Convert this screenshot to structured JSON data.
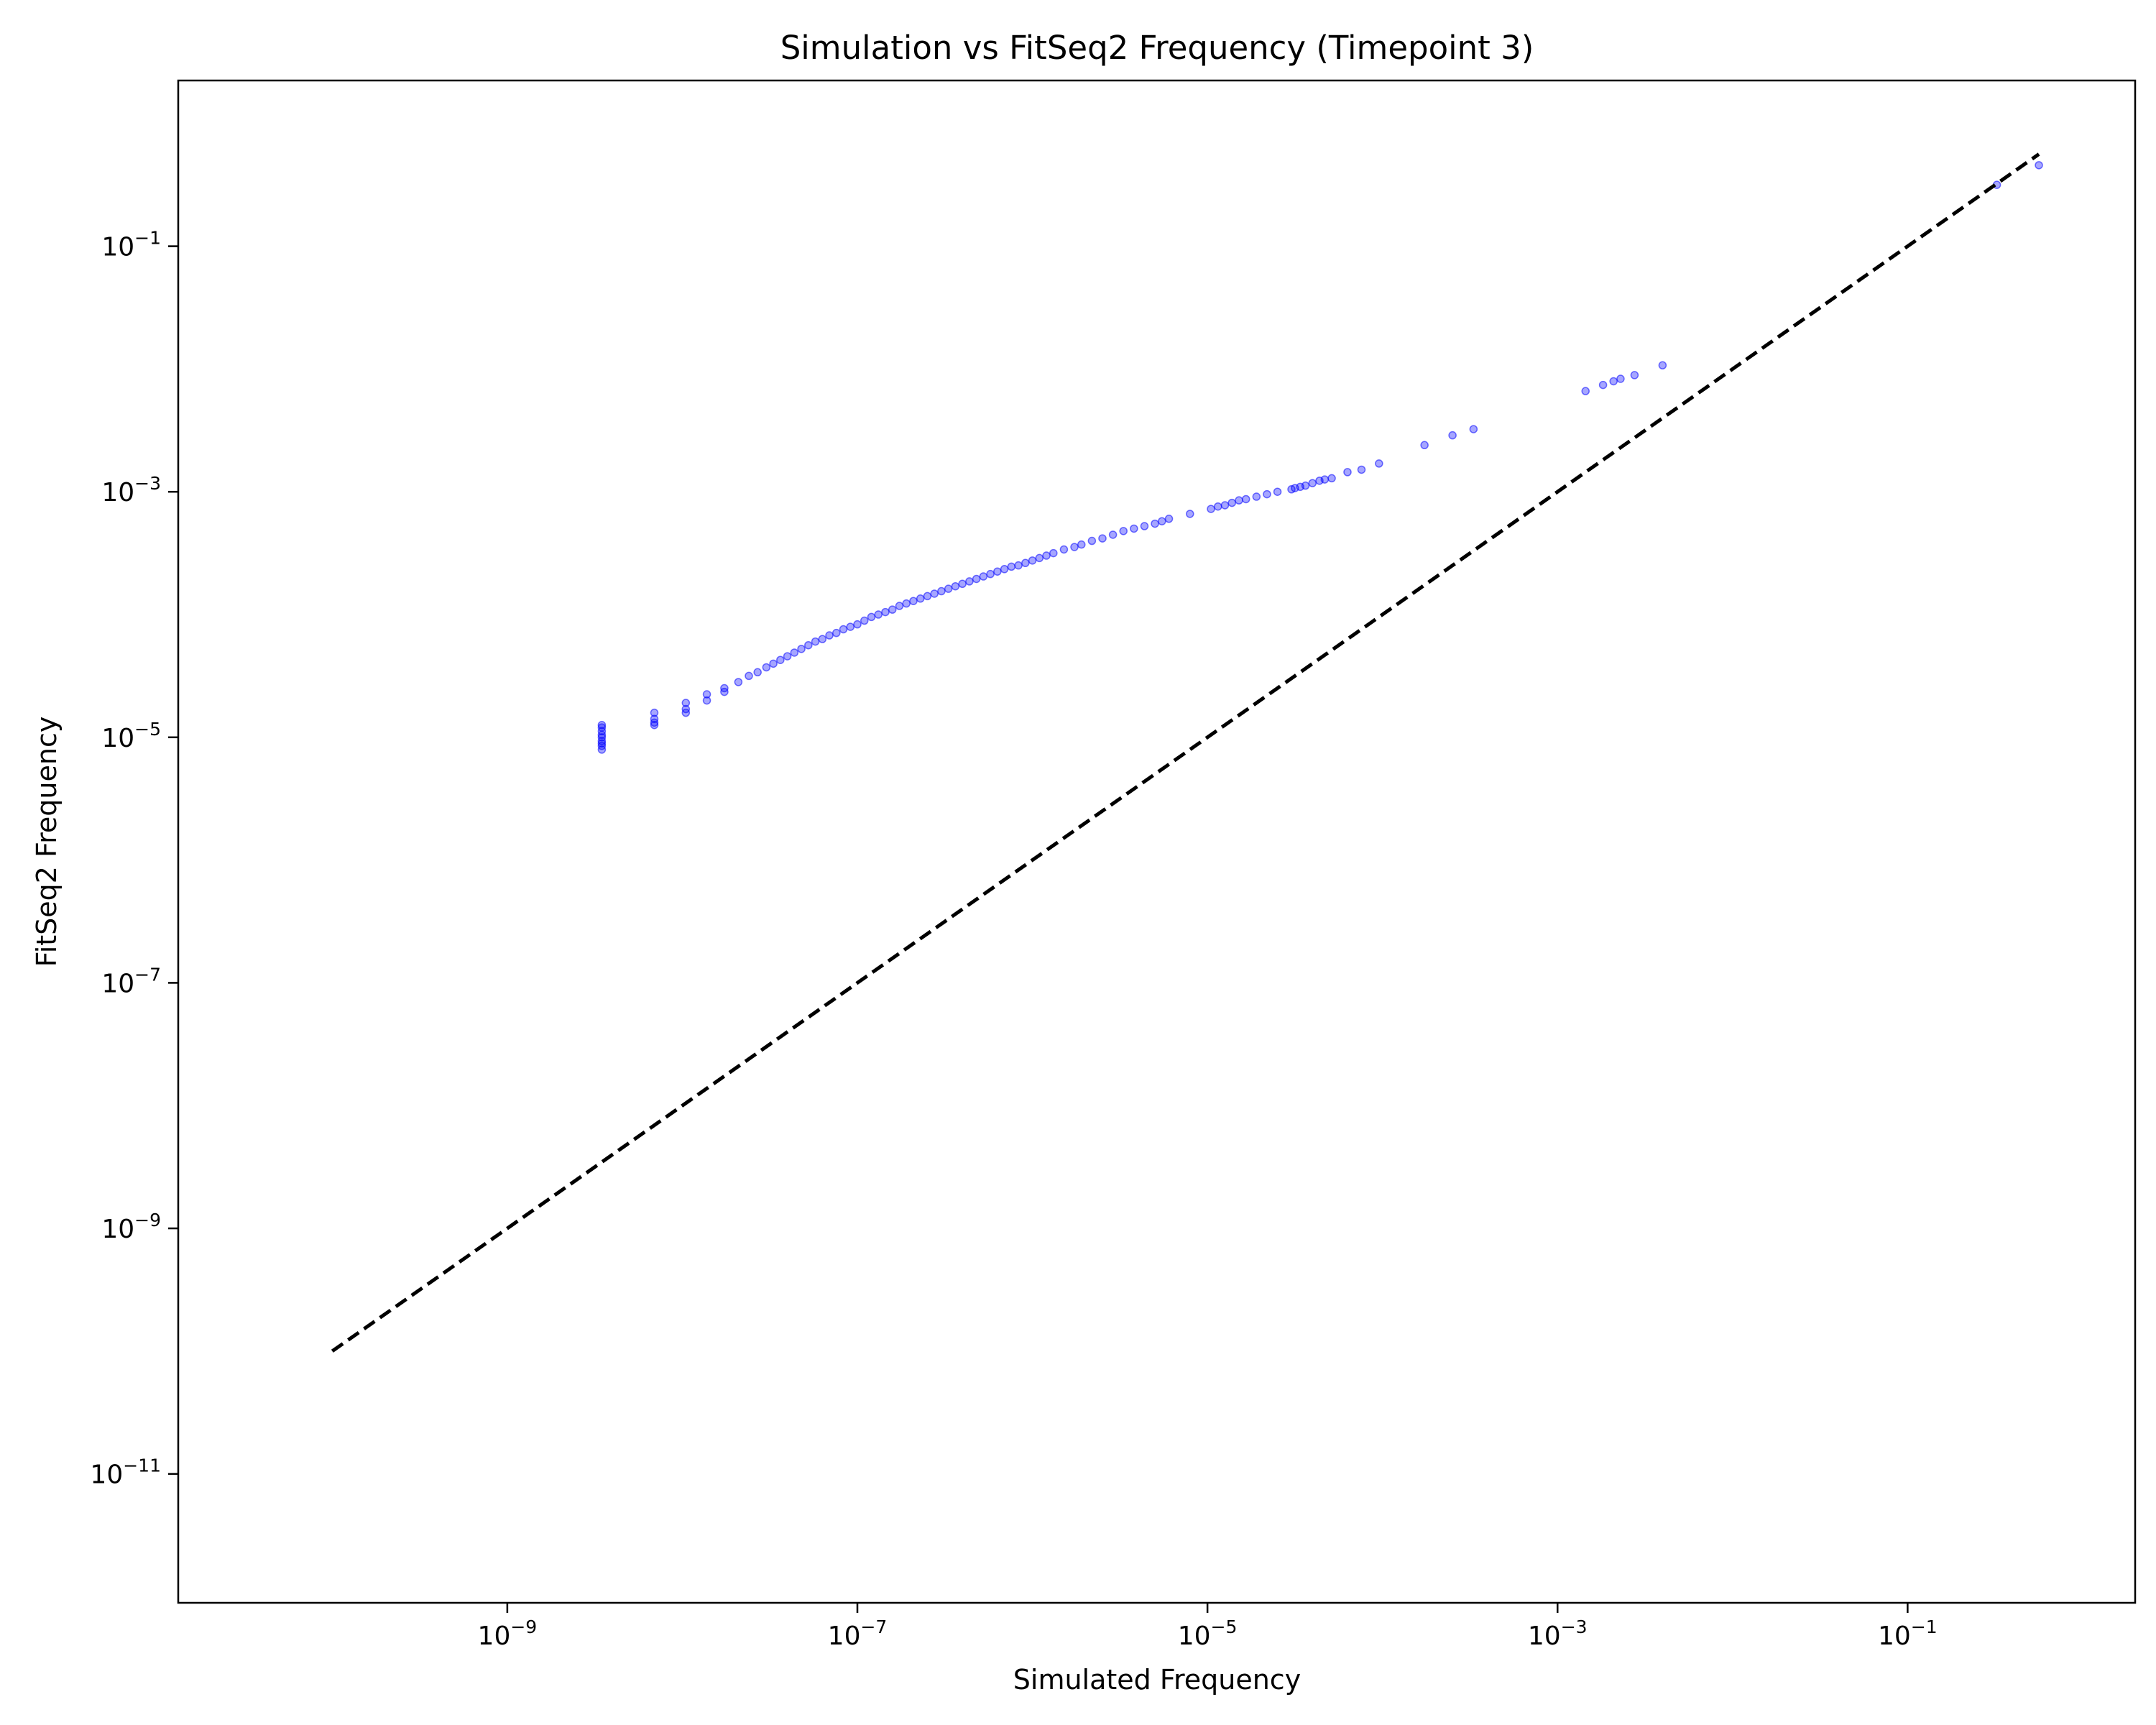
{
  "chart_data": {
    "type": "scatter",
    "title": "Simulation vs FitSeq2 Frequency (Timepoint 3)",
    "xlabel": "Simulated Frequency",
    "ylabel": "FitSeq2 Frequency",
    "xscale": "log",
    "yscale": "log",
    "xlim_log10": [
      -10.88,
      0.3
    ],
    "ylim_log10": [
      -12.05,
      0.35
    ],
    "x_ticks": [
      {
        "base": "10",
        "exp": "−9",
        "log10": -9
      },
      {
        "base": "10",
        "exp": "−7",
        "log10": -7
      },
      {
        "base": "10",
        "exp": "−5",
        "log10": -5
      },
      {
        "base": "10",
        "exp": "−3",
        "log10": -3
      },
      {
        "base": "10",
        "exp": "−1",
        "log10": -1
      }
    ],
    "y_ticks": [
      {
        "base": "10",
        "exp": "−1",
        "log10": -1
      },
      {
        "base": "10",
        "exp": "−3",
        "log10": -3
      },
      {
        "base": "10",
        "exp": "−5",
        "log10": -5
      },
      {
        "base": "10",
        "exp": "−7",
        "log10": -7
      },
      {
        "base": "10",
        "exp": "−9",
        "log10": -9
      },
      {
        "base": "10",
        "exp": "−11",
        "log10": -11
      }
    ],
    "reference_line": {
      "style": "dashed",
      "color": "#000000",
      "x_log10": [
        -10,
        -0.25
      ],
      "y_log10": [
        -10,
        -0.25
      ]
    },
    "series": [
      {
        "marker_color": "#0000ff",
        "points_log10": [
          [
            -8.46,
            -5.0
          ],
          [
            -8.46,
            -4.95
          ],
          [
            -8.46,
            -4.9
          ],
          [
            -8.46,
            -5.05
          ],
          [
            -8.46,
            -5.1
          ],
          [
            -8.46,
            -4.92
          ],
          [
            -8.46,
            -4.98
          ],
          [
            -8.46,
            -5.03
          ],
          [
            -8.46,
            -5.07
          ],
          [
            -8.16,
            -4.8
          ],
          [
            -8.16,
            -4.85
          ],
          [
            -8.16,
            -4.9
          ],
          [
            -8.16,
            -4.88
          ],
          [
            -7.98,
            -4.72
          ],
          [
            -7.98,
            -4.77
          ],
          [
            -7.98,
            -4.8
          ],
          [
            -7.86,
            -4.65
          ],
          [
            -7.86,
            -4.7
          ],
          [
            -7.76,
            -4.6
          ],
          [
            -7.76,
            -4.63
          ],
          [
            -7.68,
            -4.55
          ],
          [
            -7.62,
            -4.5
          ],
          [
            -7.57,
            -4.47
          ],
          [
            -7.52,
            -4.43
          ],
          [
            -7.48,
            -4.4
          ],
          [
            -7.44,
            -4.37
          ],
          [
            -7.4,
            -4.34
          ],
          [
            -7.36,
            -4.31
          ],
          [
            -7.32,
            -4.28
          ],
          [
            -7.28,
            -4.25
          ],
          [
            -7.24,
            -4.22
          ],
          [
            -7.2,
            -4.2
          ],
          [
            -7.16,
            -4.17
          ],
          [
            -7.12,
            -4.15
          ],
          [
            -7.08,
            -4.12
          ],
          [
            -7.04,
            -4.1
          ],
          [
            -7.0,
            -4.08
          ],
          [
            -6.96,
            -4.05
          ],
          [
            -6.92,
            -4.02
          ],
          [
            -6.88,
            -4.0
          ],
          [
            -6.84,
            -3.98
          ],
          [
            -6.8,
            -3.96
          ],
          [
            -6.76,
            -3.93
          ],
          [
            -6.72,
            -3.91
          ],
          [
            -6.68,
            -3.89
          ],
          [
            -6.64,
            -3.87
          ],
          [
            -6.6,
            -3.85
          ],
          [
            -6.56,
            -3.83
          ],
          [
            -6.52,
            -3.81
          ],
          [
            -6.48,
            -3.79
          ],
          [
            -6.44,
            -3.77
          ],
          [
            -6.4,
            -3.75
          ],
          [
            -6.36,
            -3.73
          ],
          [
            -6.32,
            -3.71
          ],
          [
            -6.28,
            -3.69
          ],
          [
            -6.24,
            -3.67
          ],
          [
            -6.2,
            -3.65
          ],
          [
            -6.16,
            -3.63
          ],
          [
            -6.12,
            -3.61
          ],
          [
            -6.08,
            -3.6
          ],
          [
            -6.04,
            -3.58
          ],
          [
            -6.0,
            -3.56
          ],
          [
            -5.96,
            -3.54
          ],
          [
            -5.92,
            -3.52
          ],
          [
            -5.88,
            -3.5
          ],
          [
            -5.82,
            -3.47
          ],
          [
            -5.76,
            -3.45
          ],
          [
            -5.72,
            -3.43
          ],
          [
            -5.66,
            -3.4
          ],
          [
            -5.6,
            -3.38
          ],
          [
            -5.54,
            -3.35
          ],
          [
            -5.48,
            -3.32
          ],
          [
            -5.42,
            -3.3
          ],
          [
            -5.36,
            -3.28
          ],
          [
            -5.3,
            -3.26
          ],
          [
            -5.26,
            -3.24
          ],
          [
            -5.22,
            -3.22
          ],
          [
            -5.1,
            -3.18
          ],
          [
            -4.98,
            -3.14
          ],
          [
            -4.94,
            -3.12
          ],
          [
            -4.9,
            -3.11
          ],
          [
            -4.86,
            -3.09
          ],
          [
            -4.82,
            -3.07
          ],
          [
            -4.78,
            -3.06
          ],
          [
            -4.72,
            -3.04
          ],
          [
            -4.66,
            -3.02
          ],
          [
            -4.6,
            -3.0
          ],
          [
            -4.52,
            -2.98
          ],
          [
            -4.5,
            -2.97
          ],
          [
            -4.47,
            -2.96
          ],
          [
            -4.44,
            -2.95
          ],
          [
            -4.4,
            -2.93
          ],
          [
            -4.36,
            -2.91
          ],
          [
            -4.33,
            -2.9
          ],
          [
            -4.29,
            -2.89
          ],
          [
            -4.2,
            -2.84
          ],
          [
            -4.12,
            -2.82
          ],
          [
            -4.02,
            -2.77
          ],
          [
            -3.76,
            -2.62
          ],
          [
            -3.6,
            -2.54
          ],
          [
            -3.48,
            -2.49
          ],
          [
            -2.84,
            -2.18
          ],
          [
            -2.74,
            -2.13
          ],
          [
            -2.68,
            -2.1
          ],
          [
            -2.64,
            -2.08
          ],
          [
            -2.56,
            -2.05
          ],
          [
            -2.4,
            -1.97
          ],
          [
            -0.49,
            -0.5
          ],
          [
            -0.25,
            -0.34
          ]
        ]
      }
    ]
  }
}
